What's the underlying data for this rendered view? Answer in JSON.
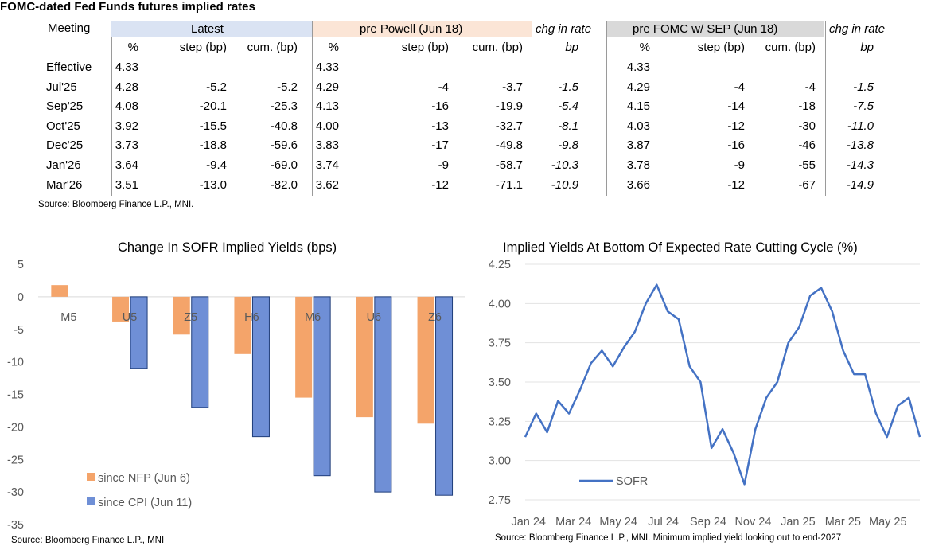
{
  "table": {
    "title": "FOMC-dated Fed Funds futures implied rates",
    "meeting_label": "Meeting",
    "groups": {
      "latest": "Latest",
      "pre_powell": "pre Powell (Jun 18)",
      "chg1": "chg in rate",
      "pre_fomc": "pre FOMC w/ SEP (Jun 18)",
      "chg2": "chg in rate"
    },
    "subheaders": [
      "%",
      "step (bp)",
      "cum. (bp)",
      "%",
      "step (bp)",
      "cum. (bp)",
      "bp",
      "%",
      "step (bp)",
      "cum. (bp)",
      "bp"
    ],
    "rows": [
      [
        "Effective",
        "4.33",
        "",
        "",
        "4.33",
        "",
        "",
        "",
        "4.33",
        "",
        "",
        ""
      ],
      [
        "Jul'25",
        "4.28",
        "-5.2",
        "-5.2",
        "4.29",
        "-4",
        "-3.7",
        "-1.5",
        "4.29",
        "-4",
        "-4",
        "-1.5"
      ],
      [
        "Sep'25",
        "4.08",
        "-20.1",
        "-25.3",
        "4.13",
        "-16",
        "-19.9",
        "-5.4",
        "4.15",
        "-14",
        "-18",
        "-7.5"
      ],
      [
        "Oct'25",
        "3.92",
        "-15.5",
        "-40.8",
        "4.00",
        "-13",
        "-32.7",
        "-8.1",
        "4.03",
        "-12",
        "-30",
        "-11.0"
      ],
      [
        "Dec'25",
        "3.73",
        "-18.8",
        "-59.6",
        "3.83",
        "-17",
        "-49.8",
        "-9.8",
        "3.87",
        "-16",
        "-46",
        "-13.8"
      ],
      [
        "Jan'26",
        "3.64",
        "-9.4",
        "-69.0",
        "3.74",
        "-9",
        "-58.7",
        "-10.3",
        "3.78",
        "-9",
        "-55",
        "-14.3"
      ],
      [
        "Mar'26",
        "3.51",
        "-13.0",
        "-82.0",
        "3.62",
        "-12",
        "-71.1",
        "-10.9",
        "3.66",
        "-12",
        "-67",
        "-14.9"
      ]
    ],
    "source": "Source: Bloomberg Finance L.P., MNI.",
    "colors": {
      "latest": "#dae3f3",
      "pre_powell": "#fbe5d6",
      "pre_fomc": "#d9d9d9"
    }
  },
  "chart_data": [
    {
      "type": "bar",
      "title": "Change In SOFR Implied Yields (bps)",
      "categories": [
        "M5",
        "U5",
        "Z5",
        "H6",
        "M6",
        "U6",
        "Z6"
      ],
      "series": [
        {
          "name": "since NFP (Jun 6)",
          "color": "#f4a46a",
          "values": [
            1.8,
            -3.8,
            -5.8,
            -8.8,
            -15.5,
            -18.5,
            -19.5
          ]
        },
        {
          "name": "since CPI (Jun 11)",
          "color": "#6f8fd6",
          "values": [
            0,
            -11.0,
            -17.0,
            -21.5,
            -27.5,
            -30.0,
            -30.5
          ]
        }
      ],
      "ylim": [
        -35,
        5
      ],
      "yticks": [
        "5",
        "0",
        "-5",
        "-10",
        "-15",
        "-20",
        "-25",
        "-30",
        "-35"
      ],
      "legend": "bottom-left",
      "source": "Source: Bloomberg Finance L.P., MNI"
    },
    {
      "type": "line",
      "title": "Implied Yields At Bottom Of Expected Rate Cutting Cycle (%)",
      "ylim": [
        2.75,
        4.25
      ],
      "yticks": [
        "4.25",
        "4.00",
        "3.75",
        "3.50",
        "3.25",
        "3.00",
        "2.75"
      ],
      "xticks": [
        "Jan 24",
        "Mar 24",
        "May 24",
        "Jul 24",
        "Sep 24",
        "Nov 24",
        "Jan 25",
        "Mar 25",
        "May 25"
      ],
      "series": [
        {
          "name": "SOFR",
          "color": "#4472c4",
          "x": [
            0,
            0.5,
            1,
            1.5,
            2,
            2.5,
            3,
            3.5,
            4,
            4.5,
            5,
            5.5,
            6,
            6.5,
            7,
            7.5,
            8,
            8.5,
            9,
            9.5,
            10,
            10.5,
            11,
            11.5,
            12,
            12.5,
            13,
            13.5,
            14,
            14.5,
            15,
            15.5,
            16,
            16.5,
            17,
            17.5,
            18
          ],
          "values": [
            3.15,
            3.3,
            3.18,
            3.38,
            3.3,
            3.45,
            3.62,
            3.7,
            3.6,
            3.72,
            3.82,
            4.0,
            4.12,
            3.95,
            3.9,
            3.6,
            3.5,
            3.08,
            3.2,
            3.05,
            2.85,
            3.2,
            3.4,
            3.5,
            3.75,
            3.85,
            4.05,
            4.1,
            3.95,
            3.7,
            3.55,
            3.55,
            3.3,
            3.15,
            3.35,
            3.4,
            3.15
          ]
        }
      ],
      "legend": "bottom-left",
      "source": "Source: Bloomberg Finance L.P., MNI. Minimum implied yield looking out to end-2027"
    }
  ]
}
